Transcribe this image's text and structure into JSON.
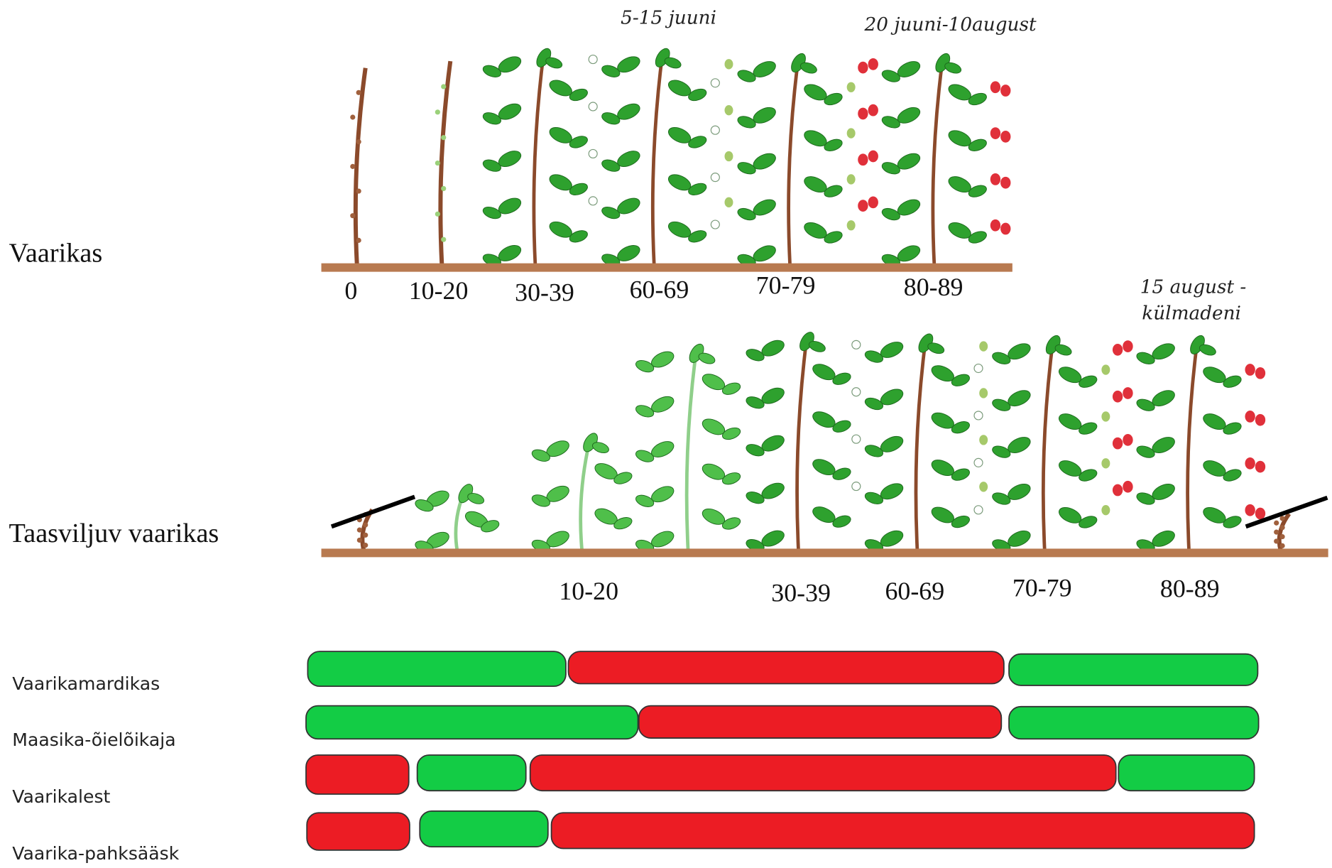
{
  "rows": [
    {
      "label": "Vaarikas",
      "stages": [
        "0",
        "10-20",
        "30-39",
        "60-69",
        "70-79",
        "80-89"
      ]
    },
    {
      "label": "Taasviljuv vaarikas",
      "stages": [
        "10-20",
        "30-39",
        "60-69",
        "70-79",
        "80-89"
      ]
    }
  ],
  "annotations": [
    "5-15 juuni",
    "20 juuni-10august",
    "15 august -",
    "külmadeni"
  ],
  "pests": [
    "Vaarikamardikas",
    "Maasika-õielõikaja",
    "Vaarikalest",
    "Vaarika-pahksääsk"
  ]
}
